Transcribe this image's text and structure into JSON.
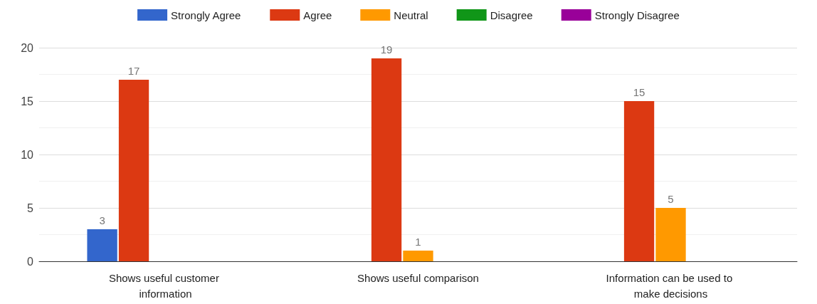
{
  "chart_data": {
    "type": "bar",
    "categories": [
      "Shows useful customer information",
      "Shows useful comparison",
      "Information can be used to make decisions"
    ],
    "series": [
      {
        "name": "Strongly Agree",
        "color": "#3366cc",
        "values": [
          3,
          0,
          0
        ],
        "value_labels": [
          "3",
          null,
          null
        ]
      },
      {
        "name": "Agree",
        "color": "#dc3912",
        "values": [
          17,
          19,
          15
        ],
        "value_labels": [
          "17",
          "19",
          "15"
        ]
      },
      {
        "name": "Neutral",
        "color": "#ff9900",
        "values": [
          0,
          1,
          5
        ],
        "value_labels": [
          null,
          "1",
          "5"
        ]
      },
      {
        "name": "Disagree",
        "color": "#109618",
        "values": [
          0,
          0,
          0
        ],
        "value_labels": [
          null,
          null,
          null
        ]
      },
      {
        "name": "Strongly Disagree",
        "color": "#990099",
        "values": [
          0,
          0,
          0
        ],
        "value_labels": [
          null,
          null,
          null
        ]
      }
    ],
    "ylim": [
      0,
      20
    ],
    "yticks": [
      0,
      5,
      10,
      15,
      20
    ],
    "grid": "y",
    "legend": "top"
  }
}
